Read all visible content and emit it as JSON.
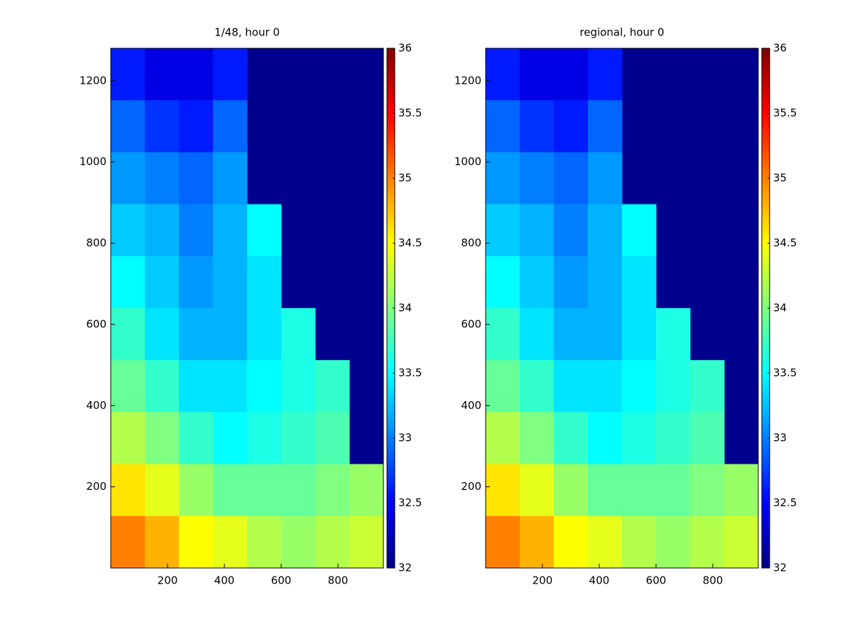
{
  "chart_data": [
    {
      "type": "heatmap",
      "title": "1/48, hour 0",
      "colormap": "jet",
      "nan_color": "#00008f",
      "x": [
        60,
        180,
        300,
        420,
        540,
        660,
        780,
        900
      ],
      "y": [
        1216,
        1088,
        960,
        832,
        704,
        576,
        448,
        320,
        192,
        64
      ],
      "z": [
        [
          32.6,
          32.4,
          32.4,
          32.6,
          null,
          null,
          null,
          null
        ],
        [
          32.9,
          32.7,
          32.6,
          32.9,
          null,
          null,
          null,
          null
        ],
        [
          33.1,
          33.0,
          32.9,
          33.1,
          null,
          null,
          null,
          null
        ],
        [
          33.3,
          33.2,
          33.0,
          33.2,
          33.5,
          null,
          null,
          null
        ],
        [
          33.5,
          33.3,
          33.1,
          33.2,
          33.4,
          null,
          null,
          null
        ],
        [
          33.7,
          33.4,
          33.2,
          33.2,
          33.4,
          33.6,
          null,
          null
        ],
        [
          33.9,
          33.7,
          33.4,
          33.4,
          33.5,
          33.6,
          33.7,
          null
        ],
        [
          34.2,
          34.0,
          33.7,
          33.5,
          33.6,
          33.7,
          33.8,
          null
        ],
        [
          34.6,
          34.4,
          34.1,
          33.9,
          33.9,
          33.9,
          34.0,
          34.1
        ],
        [
          35.0,
          34.8,
          34.5,
          34.4,
          34.2,
          34.1,
          34.2,
          34.3
        ]
      ],
      "xlim": [
        0,
        960
      ],
      "ylim": [
        0,
        1280
      ],
      "xticks": [
        200,
        400,
        600,
        800
      ],
      "yticks": [
        200,
        400,
        600,
        800,
        1000,
        1200
      ],
      "clim": [
        32,
        36
      ],
      "cticks": [
        32,
        32.5,
        33,
        33.5,
        34,
        34.5,
        35,
        35.5,
        36
      ]
    },
    {
      "type": "heatmap",
      "title": "regional, hour 0",
      "colormap": "jet",
      "nan_color": "#00008f",
      "x": [
        60,
        180,
        300,
        420,
        540,
        660,
        780,
        900
      ],
      "y": [
        1216,
        1088,
        960,
        832,
        704,
        576,
        448,
        320,
        192,
        64
      ],
      "z": [
        [
          32.6,
          32.4,
          32.4,
          32.6,
          null,
          null,
          null,
          null
        ],
        [
          32.9,
          32.7,
          32.6,
          32.9,
          null,
          null,
          null,
          null
        ],
        [
          33.1,
          33.0,
          32.9,
          33.1,
          null,
          null,
          null,
          null
        ],
        [
          33.3,
          33.2,
          33.0,
          33.2,
          33.5,
          null,
          null,
          null
        ],
        [
          33.5,
          33.3,
          33.1,
          33.2,
          33.4,
          null,
          null,
          null
        ],
        [
          33.7,
          33.4,
          33.2,
          33.2,
          33.4,
          33.6,
          null,
          null
        ],
        [
          33.9,
          33.7,
          33.4,
          33.4,
          33.5,
          33.6,
          33.7,
          null
        ],
        [
          34.2,
          34.0,
          33.7,
          33.5,
          33.6,
          33.7,
          33.8,
          null
        ],
        [
          34.6,
          34.4,
          34.1,
          33.9,
          33.9,
          33.9,
          34.0,
          34.1
        ],
        [
          35.0,
          34.8,
          34.5,
          34.4,
          34.2,
          34.1,
          34.2,
          34.3
        ]
      ],
      "xlim": [
        0,
        960
      ],
      "ylim": [
        0,
        1280
      ],
      "xticks": [
        200,
        400,
        600,
        800
      ],
      "yticks": [
        200,
        400,
        600,
        800,
        1000,
        1200
      ],
      "clim": [
        32,
        36
      ],
      "cticks": [
        32,
        32.5,
        33,
        33.5,
        34,
        34.5,
        35,
        35.5,
        36
      ]
    }
  ]
}
